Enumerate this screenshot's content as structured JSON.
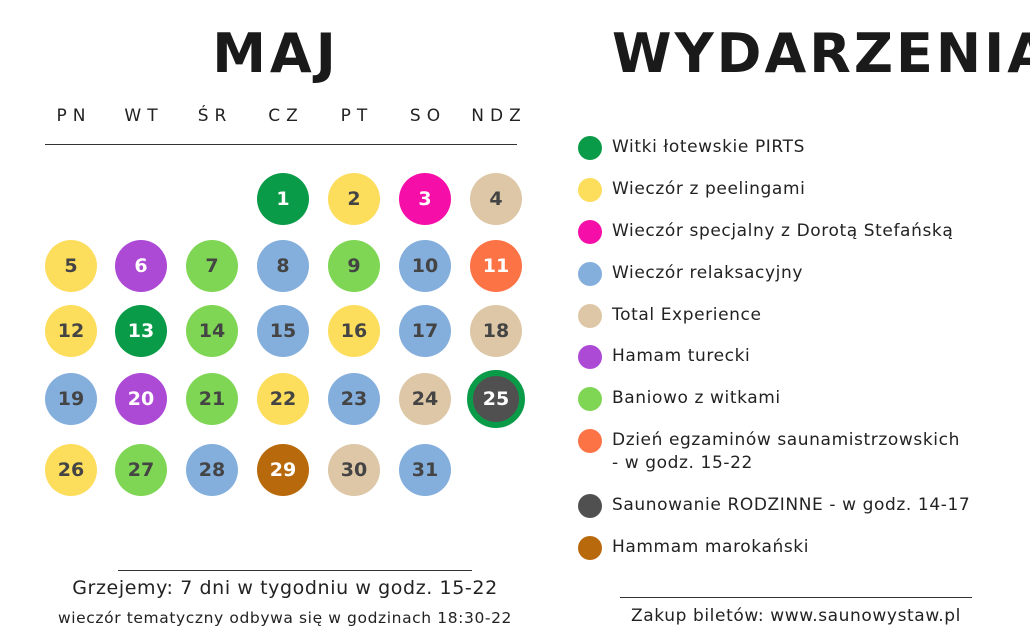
{
  "calendar": {
    "month": "MAJ",
    "weekdays": [
      "PN",
      "WT",
      "ŚR",
      "CZ",
      "PT",
      "SO",
      "NDZ"
    ],
    "days": [
      {
        "day": "1",
        "col": 3,
        "row": 0,
        "event": "green_dark"
      },
      {
        "day": "2",
        "col": 4,
        "row": 0,
        "event": "yellow"
      },
      {
        "day": "3",
        "col": 5,
        "row": 0,
        "event": "magenta"
      },
      {
        "day": "4",
        "col": 6,
        "row": 0,
        "event": "beige"
      },
      {
        "day": "5",
        "col": 0,
        "row": 1,
        "event": "yellow"
      },
      {
        "day": "6",
        "col": 1,
        "row": 1,
        "event": "purple"
      },
      {
        "day": "7",
        "col": 2,
        "row": 1,
        "event": "green_light"
      },
      {
        "day": "8",
        "col": 3,
        "row": 1,
        "event": "blue"
      },
      {
        "day": "9",
        "col": 4,
        "row": 1,
        "event": "green_light"
      },
      {
        "day": "10",
        "col": 5,
        "row": 1,
        "event": "blue"
      },
      {
        "day": "11",
        "col": 6,
        "row": 1,
        "event": "orange"
      },
      {
        "day": "12",
        "col": 0,
        "row": 2,
        "event": "yellow"
      },
      {
        "day": "13",
        "col": 1,
        "row": 2,
        "event": "green_dark"
      },
      {
        "day": "14",
        "col": 2,
        "row": 2,
        "event": "green_light"
      },
      {
        "day": "15",
        "col": 3,
        "row": 2,
        "event": "blue"
      },
      {
        "day": "16",
        "col": 4,
        "row": 2,
        "event": "yellow"
      },
      {
        "day": "17",
        "col": 5,
        "row": 2,
        "event": "blue"
      },
      {
        "day": "18",
        "col": 6,
        "row": 2,
        "event": "beige"
      },
      {
        "day": "19",
        "col": 0,
        "row": 3,
        "event": "blue"
      },
      {
        "day": "20",
        "col": 1,
        "row": 3,
        "event": "purple"
      },
      {
        "day": "21",
        "col": 2,
        "row": 3,
        "event": "green_light"
      },
      {
        "day": "22",
        "col": 3,
        "row": 3,
        "event": "yellow"
      },
      {
        "day": "23",
        "col": 4,
        "row": 3,
        "event": "blue"
      },
      {
        "day": "24",
        "col": 5,
        "row": 3,
        "event": "beige"
      },
      {
        "day": "25",
        "col": 6,
        "row": 3,
        "event": "gray",
        "ring": "green_dark"
      },
      {
        "day": "26",
        "col": 0,
        "row": 4,
        "event": "yellow"
      },
      {
        "day": "27",
        "col": 1,
        "row": 4,
        "event": "green_light"
      },
      {
        "day": "28",
        "col": 2,
        "row": 4,
        "event": "blue"
      },
      {
        "day": "29",
        "col": 3,
        "row": 4,
        "event": "brown"
      },
      {
        "day": "30",
        "col": 4,
        "row": 4,
        "event": "beige"
      },
      {
        "day": "31",
        "col": 5,
        "row": 4,
        "event": "blue"
      }
    ]
  },
  "colors": {
    "green_dark": "#0a9b48",
    "yellow": "#fddd5c",
    "magenta": "#f50fa8",
    "blue": "#84afdd",
    "beige": "#ddc7a6",
    "purple": "#ac49d5",
    "green_light": "#7fd654",
    "orange": "#fc7346",
    "gray": "#505050",
    "brown": "#b8690b"
  },
  "light_text_events": [
    "green_dark",
    "magenta",
    "purple",
    "orange",
    "gray",
    "brown"
  ],
  "legend": {
    "title": "WYDARZENIA",
    "items": [
      {
        "label": "Witki łotewskie PIRTS",
        "color": "green_dark"
      },
      {
        "label": "Wieczór z peelingami",
        "color": "yellow"
      },
      {
        "label": "Wieczór specjalny z Dorotą Stefańską",
        "color": "magenta"
      },
      {
        "label": "Wieczór relaksacyjny",
        "color": "blue"
      },
      {
        "label": "Total Experience",
        "color": "beige"
      },
      {
        "label": "Hamam turecki",
        "color": "purple"
      },
      {
        "label": "Baniowo z witkami",
        "color": "green_light"
      },
      {
        "label": "Dzień egzaminów saunamistrzowskich\n - w godz. 15-22",
        "color": "orange"
      },
      {
        "label": "Saunowanie RODZINNE - w godz. 14-17",
        "color": "gray"
      },
      {
        "label": "Hammam marokański",
        "color": "brown"
      }
    ]
  },
  "footer": {
    "hours": "Grzejemy: 7 dni w tygodniu w godz. 15-22",
    "theme_evening": "wieczór tematyczny odbywa się w godzinach 18:30-22",
    "tickets": "Zakup biletów: www.saunowystaw.pl"
  }
}
